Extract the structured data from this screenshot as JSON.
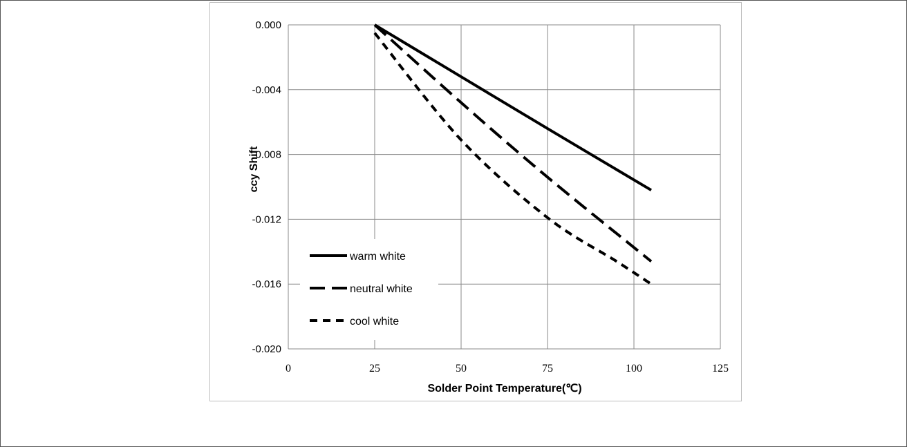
{
  "chart_data": {
    "type": "line",
    "title": "",
    "xlabel": "Solder Point Temperature(℃)",
    "ylabel": "ccy Shift",
    "xlim": [
      0,
      125
    ],
    "ylim": [
      -0.02,
      0.0
    ],
    "x_ticks": [
      0,
      25,
      50,
      75,
      100,
      125
    ],
    "x_tick_labels": [
      "0",
      "25",
      "50",
      "75",
      "100",
      "125"
    ],
    "y_ticks": [
      0.0,
      -0.004,
      -0.008,
      -0.012,
      -0.016,
      -0.02
    ],
    "y_tick_labels": [
      "0.000",
      "-0.004",
      "-0.008",
      "-0.012",
      "-0.016",
      "-0.020"
    ],
    "grid": true,
    "legend_position": "bottom-left",
    "series": [
      {
        "name": "warm white",
        "dash": "solid",
        "color": "#000000",
        "points": [
          [
            25,
            0.0
          ],
          [
            50,
            -0.0032
          ],
          [
            75,
            -0.0064
          ],
          [
            105,
            -0.0102
          ]
        ]
      },
      {
        "name": "neutral white",
        "dash": "long-dash",
        "color": "#000000",
        "points": [
          [
            25,
            0.0
          ],
          [
            50,
            -0.0048
          ],
          [
            75,
            -0.0094
          ],
          [
            105,
            -0.0146
          ]
        ]
      },
      {
        "name": "cool white",
        "dash": "short-dash",
        "color": "#000000",
        "points": [
          [
            25,
            -0.0005
          ],
          [
            50,
            -0.0071
          ],
          [
            75,
            -0.0119
          ],
          [
            95,
            -0.0146
          ],
          [
            105,
            -0.016
          ]
        ]
      }
    ]
  }
}
